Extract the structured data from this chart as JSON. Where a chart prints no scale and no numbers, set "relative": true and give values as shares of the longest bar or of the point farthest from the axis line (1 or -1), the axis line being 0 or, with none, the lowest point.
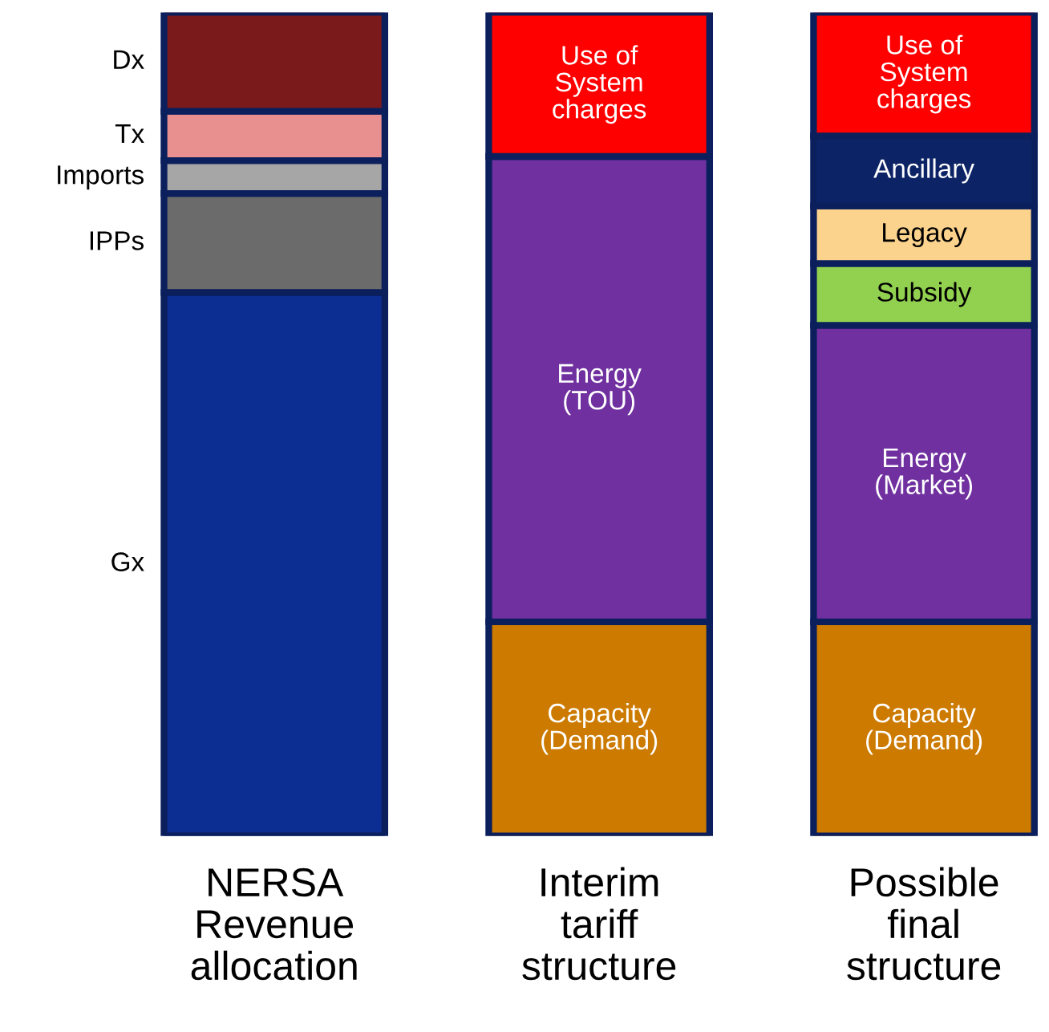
{
  "chart_data": {
    "type": "bar",
    "stacked": true,
    "relative": true,
    "categories": [
      "NERSA\nRevenue\nallocation",
      "Interim\ntariff\nstructure",
      "Possible\nfinal\nstructure"
    ],
    "series": [
      {
        "name": "Gx",
        "color": "#0c2d91",
        "values": [
          0.66,
          null,
          null
        ]
      },
      {
        "name": "IPPs",
        "color": "#6b6b6b",
        "values": [
          0.12,
          null,
          null
        ]
      },
      {
        "name": "Imports",
        "color": "#a6a6a6",
        "values": [
          0.04,
          null,
          null
        ]
      },
      {
        "name": "Tx",
        "color": "#e88f8f",
        "values": [
          0.06,
          null,
          null
        ]
      },
      {
        "name": "Dx",
        "color": "#7b1a1a",
        "values": [
          0.12,
          null,
          null
        ]
      },
      {
        "name": "Capacity\n(Demand)",
        "color": "#cc7a00",
        "values": [
          null,
          0.26,
          0.26
        ]
      },
      {
        "name": "Energy\n(TOU)",
        "color": "#7030a0",
        "values": [
          null,
          0.565,
          null
        ]
      },
      {
        "name": "Energy\n(Market)",
        "color": "#7030a0",
        "values": [
          null,
          null,
          0.36
        ]
      },
      {
        "name": "Subsidy",
        "color": "#92d050",
        "values": [
          null,
          null,
          0.075
        ]
      },
      {
        "name": "Legacy",
        "color": "#fcd38d",
        "values": [
          null,
          null,
          0.07
        ]
      },
      {
        "name": "Ancillary",
        "color": "#0c2466",
        "values": [
          null,
          null,
          0.085
        ]
      },
      {
        "name": "Use of\nSystem\ncharges",
        "color": "#ff0000",
        "values": [
          null,
          0.175,
          0.15
        ]
      }
    ]
  }
}
